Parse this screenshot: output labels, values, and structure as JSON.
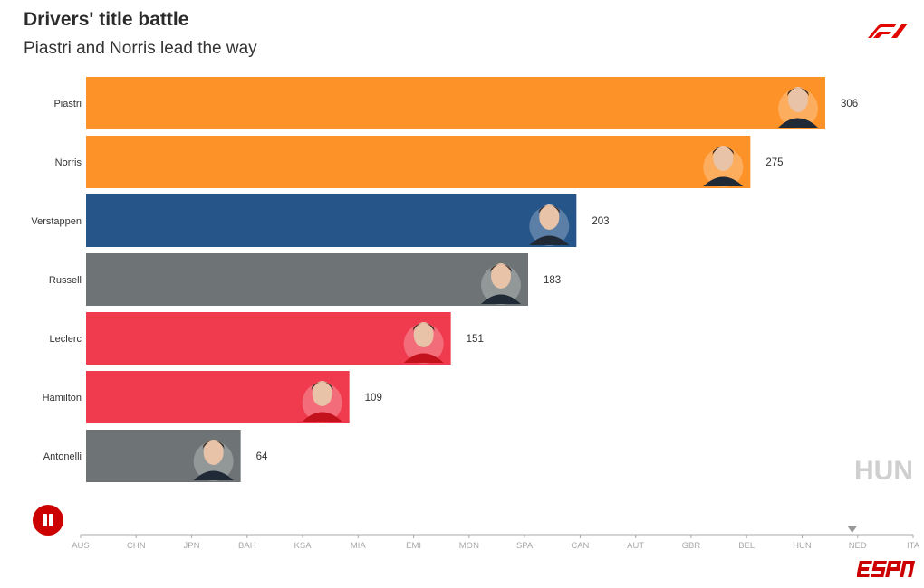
{
  "header": {
    "title": "Drivers' title battle",
    "subtitle": "Piastri and Norris lead the way"
  },
  "logos": {
    "top_right": "f1-logo",
    "bottom_right": "espn-logo"
  },
  "controls": {
    "play_state": "playing",
    "button_icon": "pause-icon"
  },
  "current_race_label": "HUN",
  "timeline": {
    "races": [
      "AUS",
      "CHN",
      "JPN",
      "BAH",
      "KSA",
      "MIA",
      "EMI",
      "MON",
      "SPA",
      "CAN",
      "AUT",
      "GBR",
      "BEL",
      "HUN",
      "NED",
      "ITA"
    ],
    "marker_at": "NED"
  },
  "colors": {
    "mclaren": "#fd9229",
    "redbull": "#26558a",
    "mercedes": "#6e7476",
    "ferrari": "#ef3b4d",
    "accent": "#cc0000"
  },
  "chart_data": {
    "type": "bar",
    "orientation": "horizontal",
    "title": "Drivers' title battle",
    "subtitle": "Piastri and Norris lead the way",
    "xlabel": "",
    "ylabel": "",
    "xlim": [
      0,
      306
    ],
    "grid": false,
    "categories": [
      "Piastri",
      "Norris",
      "Verstappen",
      "Russell",
      "Leclerc",
      "Hamilton",
      "Antonelli"
    ],
    "values": [
      306,
      275,
      203,
      183,
      151,
      109,
      64
    ],
    "teams": [
      "mclaren",
      "mclaren",
      "redbull",
      "mercedes",
      "ferrari",
      "ferrari",
      "mercedes"
    ],
    "annotation": "HUN"
  }
}
